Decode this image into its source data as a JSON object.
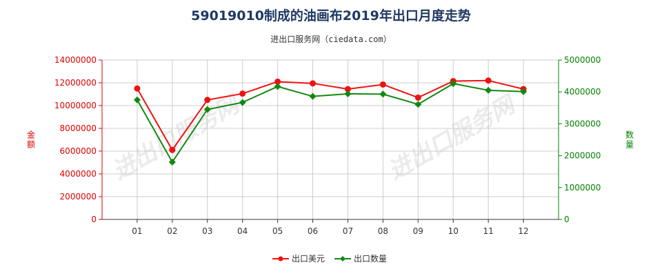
{
  "chart_data": {
    "type": "line",
    "title": "59019010制成的油画布2019年出口月度走势",
    "subtitle": "进出口服务网（ciedata.com）",
    "categories": [
      "01",
      "02",
      "03",
      "04",
      "05",
      "06",
      "07",
      "08",
      "09",
      "10",
      "11",
      "12"
    ],
    "series": [
      {
        "name": "出口美元",
        "axis": "left",
        "color": "#ee1111",
        "values": [
          11500000,
          6100000,
          10500000,
          11050000,
          12100000,
          11950000,
          11450000,
          11850000,
          10700000,
          12150000,
          12200000,
          11450000
        ]
      },
      {
        "name": "出口数量",
        "axis": "right",
        "color": "#118811",
        "values": [
          3750000,
          1800000,
          3450000,
          3670000,
          4170000,
          3860000,
          3940000,
          3930000,
          3610000,
          4260000,
          4050000,
          4010000
        ]
      }
    ],
    "ylabel_left": "金额",
    "ylabel_right": "数量",
    "ylim_left": [
      0,
      14000000
    ],
    "yticks_left": [
      0,
      2000000,
      4000000,
      6000000,
      8000000,
      10000000,
      12000000,
      14000000
    ],
    "ylim_right": [
      0,
      5000000
    ],
    "yticks_right": [
      0,
      1000000,
      2000000,
      3000000,
      4000000,
      5000000
    ],
    "grid": true,
    "legend_position": "bottom-center"
  },
  "watermark_text": "进出口服务网"
}
